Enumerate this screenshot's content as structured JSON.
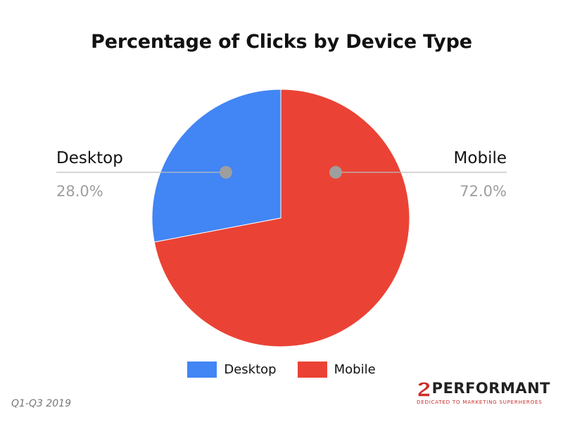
{
  "chart_data": {
    "type": "pie",
    "title": "Percentage of Clicks by Device Type",
    "series": [
      {
        "name": "Desktop",
        "value": 28.0,
        "label": "28.0%",
        "color": "#4285f4"
      },
      {
        "name": "Mobile",
        "value": 72.0,
        "label": "72.0%",
        "color": "#ea4335"
      }
    ],
    "legend_position": "bottom"
  },
  "footer": {
    "period": "Q1-Q3 2019"
  },
  "logo": {
    "name": "PERFORMANT",
    "tagline": "DEDICATED TO MARKETING SUPERHEROES",
    "color": "#c9302c"
  }
}
